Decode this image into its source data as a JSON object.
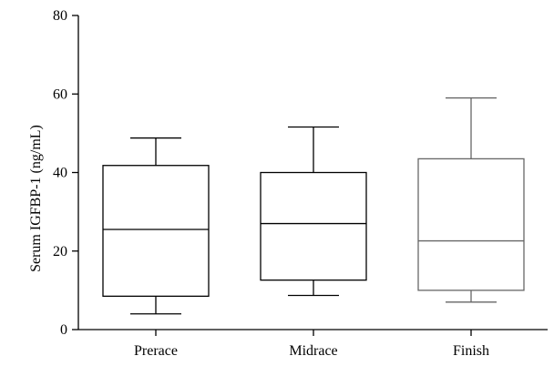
{
  "chart_data": {
    "type": "boxplot",
    "title": "",
    "xlabel": "",
    "ylabel": "Serum IGFBP-1 (ng/mL)",
    "ylim": [
      0,
      80
    ],
    "yticks": [
      0,
      20,
      40,
      60,
      80
    ],
    "grid": false,
    "categories": [
      "Prerace",
      "Midrace",
      "Finish"
    ],
    "boxes": [
      {
        "category": "Prerace",
        "min": 4,
        "q1": 8.5,
        "median": 25.5,
        "q3": 41.8,
        "max": 48.8,
        "color": "#000000"
      },
      {
        "category": "Midrace",
        "min": 8.7,
        "q1": 12.6,
        "median": 27,
        "q3": 40,
        "max": 51.6,
        "color": "#000000"
      },
      {
        "category": "Finish",
        "min": 7,
        "q1": 10,
        "median": 22.6,
        "q3": 43.5,
        "max": 59,
        "color": "#666666"
      }
    ]
  }
}
